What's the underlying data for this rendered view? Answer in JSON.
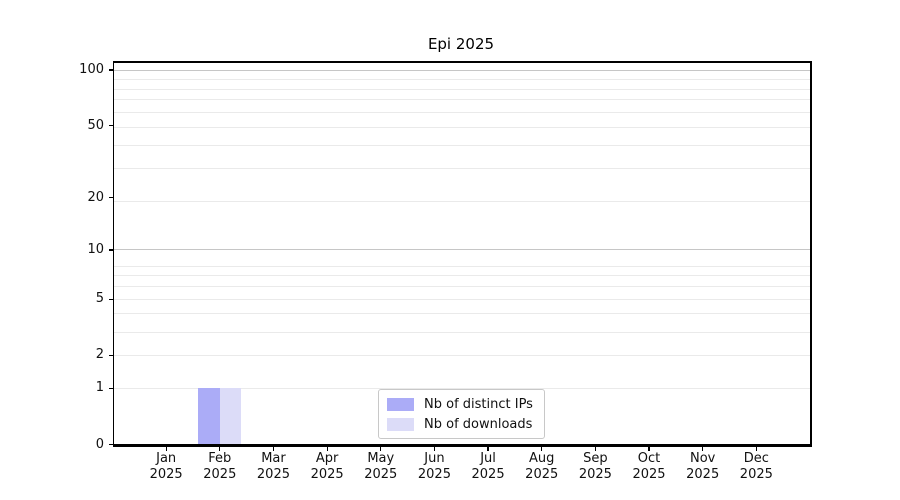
{
  "title": "Epi 2025",
  "colors": {
    "distinct_ips_bar": "#abacf7",
    "downloads_bar": "#dcdcf8",
    "grid_minor": "#eaeaea",
    "grid_major": "#c6c6c6",
    "spine": "#000000",
    "text": "#111111",
    "legend_border": "#c8c8c8",
    "legend_background": "#ffffff"
  },
  "chart_data": {
    "type": "bar",
    "title": "Epi 2025",
    "xlabel": "",
    "ylabel": "",
    "y_scale": "log1p",
    "ylim": [
      0,
      115
    ],
    "grid": true,
    "y_ticks": [
      0,
      1,
      2,
      5,
      10,
      20,
      50,
      100
    ],
    "y_grid_minor_values": [
      1,
      2,
      3,
      4,
      5,
      6,
      7,
      8,
      19,
      29,
      39,
      49,
      59,
      69,
      79,
      89
    ],
    "y_grid_major_values": [
      10,
      100
    ],
    "x_categories": [
      {
        "month": "Jan",
        "year": "2025"
      },
      {
        "month": "Feb",
        "year": "2025"
      },
      {
        "month": "Mar",
        "year": "2025"
      },
      {
        "month": "Apr",
        "year": "2025"
      },
      {
        "month": "May",
        "year": "2025"
      },
      {
        "month": "Jun",
        "year": "2025"
      },
      {
        "month": "Jul",
        "year": "2025"
      },
      {
        "month": "Aug",
        "year": "2025"
      },
      {
        "month": "Sep",
        "year": "2025"
      },
      {
        "month": "Oct",
        "year": "2025"
      },
      {
        "month": "Nov",
        "year": "2025"
      },
      {
        "month": "Dec",
        "year": "2025"
      }
    ],
    "series": [
      {
        "name": "Nb of distinct IPs",
        "color": "#abacf7",
        "values": [
          0,
          1,
          0,
          0,
          0,
          0,
          0,
          0,
          0,
          0,
          0,
          0
        ]
      },
      {
        "name": "Nb of downloads",
        "color": "#dcdcf8",
        "values": [
          0,
          1,
          0,
          0,
          0,
          0,
          0,
          0,
          0,
          0,
          0,
          0
        ]
      }
    ],
    "legend": {
      "position": "lower center"
    }
  }
}
